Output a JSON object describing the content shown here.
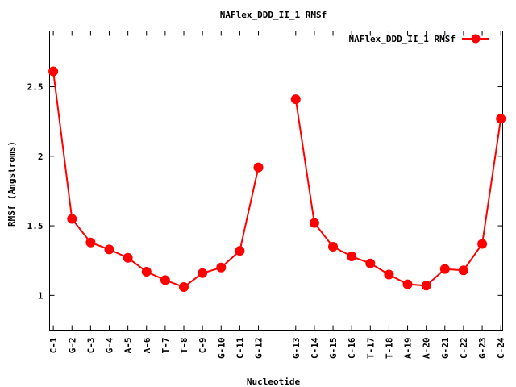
{
  "chart_data": {
    "type": "line",
    "title": "NAFlex_DDD_II_1 RMSf",
    "xlabel": "Nucleotide",
    "ylabel": "RMSf (Angstroms)",
    "ylim": [
      0.75,
      2.9
    ],
    "yticks": [
      1,
      1.5,
      2,
      2.5
    ],
    "ytick_labels": [
      "1",
      "1.5",
      "2",
      "2.5"
    ],
    "xlim": [
      0.8,
      25.1
    ],
    "grid": false,
    "legend_position": "top-right",
    "series_color": "#ff0000",
    "tick_labels": [
      {
        "x": 1,
        "label": "C-1"
      },
      {
        "x": 2,
        "label": "G-2"
      },
      {
        "x": 3,
        "label": "C-3"
      },
      {
        "x": 4,
        "label": "G-4"
      },
      {
        "x": 5,
        "label": "A-5"
      },
      {
        "x": 6,
        "label": "A-6"
      },
      {
        "x": 7,
        "label": "T-7"
      },
      {
        "x": 8,
        "label": "T-8"
      },
      {
        "x": 9,
        "label": "C-9"
      },
      {
        "x": 10,
        "label": "G-10"
      },
      {
        "x": 11,
        "label": "C-11"
      },
      {
        "x": 12,
        "label": "G-12"
      },
      {
        "x": 14,
        "label": "G-13"
      },
      {
        "x": 15,
        "label": "C-14"
      },
      {
        "x": 16,
        "label": "G-15"
      },
      {
        "x": 17,
        "label": "C-16"
      },
      {
        "x": 18,
        "label": "T-17"
      },
      {
        "x": 19,
        "label": "T-18"
      },
      {
        "x": 20,
        "label": "A-19"
      },
      {
        "x": 21,
        "label": "A-20"
      },
      {
        "x": 22,
        "label": "G-21"
      },
      {
        "x": 23,
        "label": "C-22"
      },
      {
        "x": 24,
        "label": "G-23"
      },
      {
        "x": 25,
        "label": "C-24"
      }
    ],
    "series": [
      {
        "name": "NAFlex_DDD_II_1 RMSf",
        "segments": [
          [
            [
              1,
              2.61
            ],
            [
              2,
              1.55
            ],
            [
              3,
              1.38
            ],
            [
              4,
              1.33
            ],
            [
              5,
              1.27
            ],
            [
              6,
              1.17
            ],
            [
              7,
              1.11
            ],
            [
              8,
              1.06
            ],
            [
              9,
              1.16
            ],
            [
              10,
              1.2
            ],
            [
              11,
              1.32
            ],
            [
              12,
              1.92
            ]
          ],
          [
            [
              14,
              2.41
            ],
            [
              15,
              1.52
            ],
            [
              16,
              1.35
            ],
            [
              17,
              1.28
            ],
            [
              18,
              1.23
            ],
            [
              19,
              1.15
            ],
            [
              20,
              1.08
            ],
            [
              21,
              1.07
            ],
            [
              22,
              1.19
            ],
            [
              23,
              1.18
            ],
            [
              24,
              1.37
            ],
            [
              25,
              2.27
            ]
          ]
        ]
      }
    ]
  }
}
